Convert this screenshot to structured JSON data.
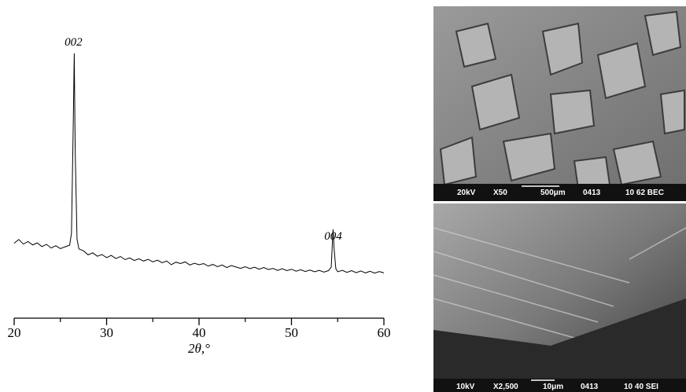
{
  "chart_data": {
    "type": "line",
    "x": [
      20,
      20.5,
      21,
      21.5,
      22,
      22.5,
      23,
      23.5,
      24,
      24.5,
      25,
      25.5,
      26,
      26.2,
      26.4,
      26.5,
      26.6,
      26.8,
      27,
      27.5,
      28,
      28.5,
      29,
      29.5,
      30,
      30.5,
      31,
      31.5,
      32,
      32.5,
      33,
      33.5,
      34,
      34.5,
      35,
      35.5,
      36,
      36.5,
      37,
      37.5,
      38,
      38.5,
      39,
      39.5,
      40,
      40.5,
      41,
      41.5,
      42,
      42.5,
      43,
      43.5,
      44,
      44.5,
      45,
      45.5,
      46,
      46.5,
      47,
      47.5,
      48,
      48.5,
      49,
      49.5,
      50,
      50.5,
      51,
      51.5,
      52,
      52.5,
      53,
      53.5,
      54,
      54.3,
      54.5,
      54.6,
      54.8,
      55,
      55.5,
      56,
      56.5,
      57,
      57.5,
      58,
      58.5,
      59,
      59.5,
      60
    ],
    "series": [
      {
        "color": "#000000",
        "values": [
          26.5,
          27.8,
          26.2,
          27.1,
          25.9,
          26.6,
          25.3,
          26.1,
          24.8,
          25.6,
          24.6,
          25.2,
          25.8,
          30,
          70,
          93.6,
          60,
          28,
          24.5,
          23.8,
          22.4,
          23.1,
          21.9,
          22.5,
          21.4,
          22.2,
          21.1,
          21.8,
          20.7,
          21.3,
          20.4,
          21.0,
          20.2,
          20.8,
          19.9,
          20.5,
          19.6,
          20.2,
          18.9,
          19.8,
          19.3,
          19.9,
          18.8,
          19.4,
          18.9,
          19.3,
          18.4,
          19.0,
          18.2,
          18.8,
          17.9,
          18.6,
          18.1,
          17.6,
          18.2,
          17.5,
          18.0,
          17.3,
          17.9,
          17.2,
          17.6,
          16.9,
          17.5,
          16.8,
          17.3,
          16.6,
          17.1,
          16.5,
          17.0,
          16.4,
          16.9,
          16.3,
          16.8,
          18,
          31.4,
          25,
          17.5,
          16.4,
          16.9,
          16.2,
          16.8,
          16.1,
          16.7,
          16.0,
          16.6,
          15.9,
          16.5,
          16.0
        ]
      }
    ],
    "xlim": [
      20,
      60
    ],
    "ylim": [
      0,
      100
    ],
    "xticks": [
      20,
      30,
      40,
      50,
      60
    ],
    "xminorticks": [
      25,
      35,
      45,
      55
    ],
    "xlabel": "2θ,°",
    "annotations": [
      {
        "text": "002",
        "x": 26.5
      },
      {
        "text": "004",
        "x": 54.6
      }
    ]
  },
  "images": [
    {
      "caption": [
        "20kV",
        "X50",
        "500μm",
        "0413",
        "10 62 BEC"
      ]
    },
    {
      "caption": [
        "10kV",
        "X2,500",
        "10μm",
        "0413",
        "10 40 SEI"
      ]
    }
  ]
}
